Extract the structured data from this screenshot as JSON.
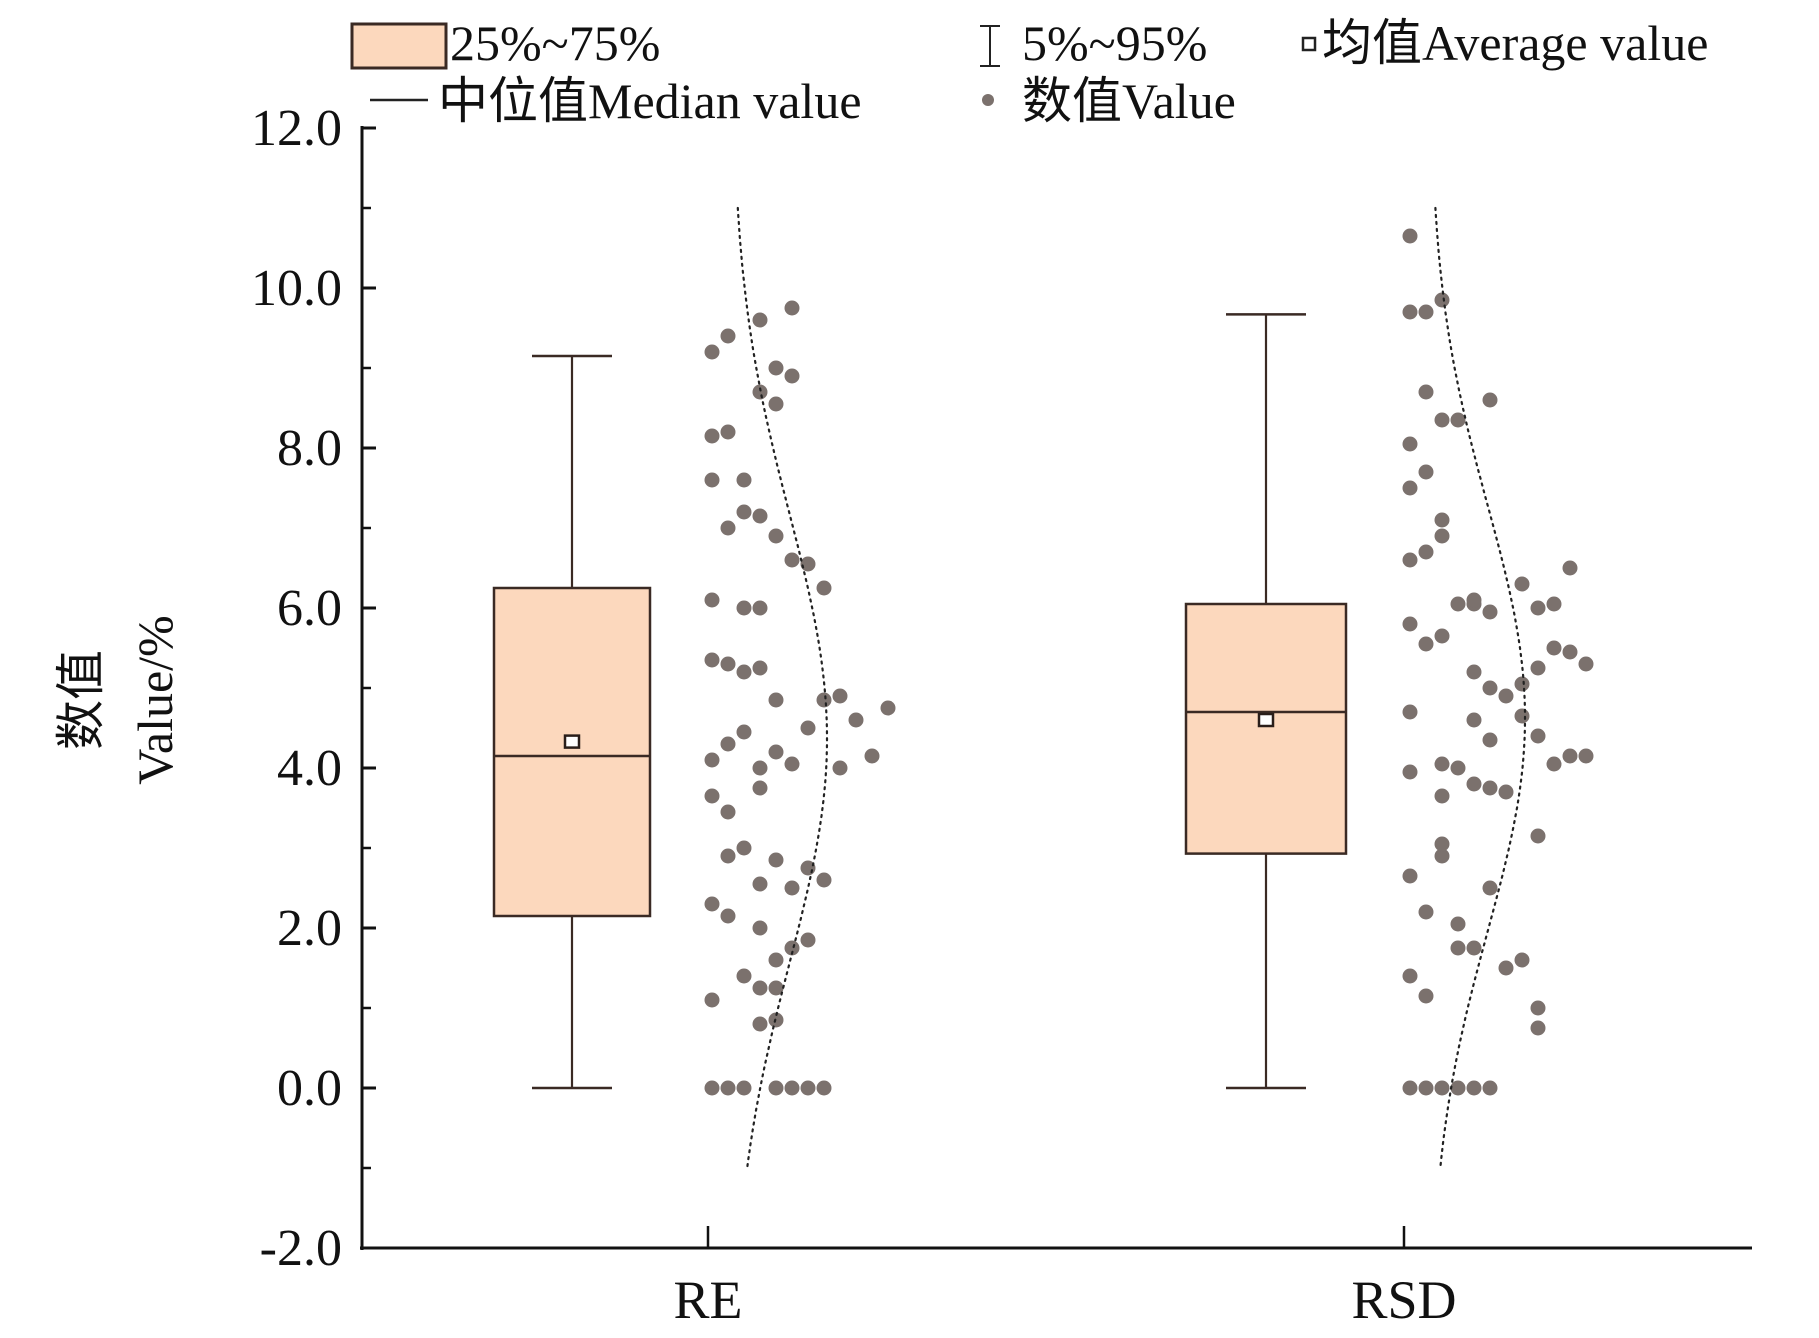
{
  "chart_data": {
    "type": "box",
    "title": "",
    "xlabel": "",
    "ylabel_line1": "数值",
    "ylabel_line2": "Value/%",
    "ylim": [
      -2.0,
      12.0
    ],
    "yticks": [
      "-2.0",
      "0.0",
      "2.0",
      "4.0",
      "6.0",
      "8.0",
      "10.0",
      "12.0"
    ],
    "ytick_values": [
      -2,
      0,
      2,
      4,
      6,
      8,
      10,
      12
    ],
    "categories": [
      "RE",
      "RSD"
    ],
    "colors": {
      "box_fill": "#fcd8bd",
      "box_stroke": "#3a2a24",
      "point": "#7b716d",
      "curve": "#222222"
    },
    "legend": {
      "placement": "top",
      "items": [
        {
          "key": "box",
          "label": "25%~75%"
        },
        {
          "key": "whisker",
          "label": "5%~95%"
        },
        {
          "key": "mean",
          "label": "均值Average value"
        },
        {
          "key": "median",
          "label": "中位值Median value"
        },
        {
          "key": "point",
          "label": "数值Value"
        }
      ]
    },
    "series": [
      {
        "name": "RE",
        "whisker_low": 0.0,
        "q1": 2.15,
        "median": 4.15,
        "q3": 6.25,
        "whisker_high": 9.15,
        "mean": 4.33,
        "points": [
          [
            0.0,
            0
          ],
          [
            0.0,
            1
          ],
          [
            0.0,
            2
          ],
          [
            0.0,
            4
          ],
          [
            0.0,
            5
          ],
          [
            0.0,
            6
          ],
          [
            0.0,
            7
          ],
          [
            0.8,
            3
          ],
          [
            0.85,
            4
          ],
          [
            1.1,
            0
          ],
          [
            1.25,
            3
          ],
          [
            1.25,
            4
          ],
          [
            1.4,
            2
          ],
          [
            1.6,
            4
          ],
          [
            1.75,
            5
          ],
          [
            1.85,
            6
          ],
          [
            2.0,
            3
          ],
          [
            2.15,
            1
          ],
          [
            2.3,
            0
          ],
          [
            2.5,
            5
          ],
          [
            2.55,
            3
          ],
          [
            2.6,
            7
          ],
          [
            2.75,
            6
          ],
          [
            2.85,
            4
          ],
          [
            2.9,
            1
          ],
          [
            3.0,
            2
          ],
          [
            3.45,
            1
          ],
          [
            3.65,
            0
          ],
          [
            3.75,
            3
          ],
          [
            4.0,
            3
          ],
          [
            4.05,
            5
          ],
          [
            4.0,
            8
          ],
          [
            4.1,
            0
          ],
          [
            4.15,
            10
          ],
          [
            4.2,
            4
          ],
          [
            4.3,
            1
          ],
          [
            4.45,
            2
          ],
          [
            4.5,
            6
          ],
          [
            4.6,
            9
          ],
          [
            4.75,
            11
          ],
          [
            4.85,
            4
          ],
          [
            4.85,
            7
          ],
          [
            4.9,
            8
          ],
          [
            5.2,
            2
          ],
          [
            5.25,
            3
          ],
          [
            5.3,
            1
          ],
          [
            5.35,
            0
          ],
          [
            6.0,
            2
          ],
          [
            6.0,
            3
          ],
          [
            6.1,
            0
          ],
          [
            6.25,
            7
          ],
          [
            6.55,
            6
          ],
          [
            6.6,
            5
          ],
          [
            6.9,
            4
          ],
          [
            7.0,
            1
          ],
          [
            7.15,
            3
          ],
          [
            7.2,
            2
          ],
          [
            7.6,
            0
          ],
          [
            7.6,
            2
          ],
          [
            8.15,
            0
          ],
          [
            8.2,
            1
          ],
          [
            8.55,
            4
          ],
          [
            8.7,
            3
          ],
          [
            8.9,
            5
          ],
          [
            9.0,
            4
          ],
          [
            9.2,
            0
          ],
          [
            9.4,
            1
          ],
          [
            9.6,
            3
          ],
          [
            9.75,
            5
          ]
        ]
      },
      {
        "name": "RSD",
        "whisker_low": 0.0,
        "q1": 2.93,
        "median": 4.7,
        "q3": 6.05,
        "whisker_high": 9.67,
        "mean": 4.6,
        "points": [
          [
            0.0,
            0
          ],
          [
            0.0,
            1
          ],
          [
            0.0,
            2
          ],
          [
            0.0,
            3
          ],
          [
            0.0,
            4
          ],
          [
            0.0,
            5
          ],
          [
            0.75,
            8
          ],
          [
            1.0,
            8
          ],
          [
            1.15,
            1
          ],
          [
            1.4,
            0
          ],
          [
            1.5,
            6
          ],
          [
            1.6,
            7
          ],
          [
            1.75,
            3
          ],
          [
            1.75,
            4
          ],
          [
            2.05,
            3
          ],
          [
            2.2,
            1
          ],
          [
            2.5,
            5
          ],
          [
            2.65,
            0
          ],
          [
            2.9,
            2
          ],
          [
            3.05,
            2
          ],
          [
            3.15,
            8
          ],
          [
            3.65,
            2
          ],
          [
            3.7,
            6
          ],
          [
            3.75,
            5
          ],
          [
            3.8,
            4
          ],
          [
            3.95,
            0
          ],
          [
            4.0,
            3
          ],
          [
            4.05,
            2
          ],
          [
            4.05,
            9
          ],
          [
            4.15,
            10
          ],
          [
            4.15,
            11
          ],
          [
            4.35,
            5
          ],
          [
            4.4,
            8
          ],
          [
            4.6,
            4
          ],
          [
            4.65,
            7
          ],
          [
            4.7,
            0
          ],
          [
            4.9,
            6
          ],
          [
            5.0,
            5
          ],
          [
            5.05,
            7
          ],
          [
            5.2,
            4
          ],
          [
            5.25,
            8
          ],
          [
            5.3,
            11
          ],
          [
            5.45,
            10
          ],
          [
            5.5,
            9
          ],
          [
            5.55,
            1
          ],
          [
            5.65,
            2
          ],
          [
            5.8,
            0
          ],
          [
            5.95,
            5
          ],
          [
            6.05,
            4
          ],
          [
            6.05,
            3
          ],
          [
            6.0,
            8
          ],
          [
            6.05,
            9
          ],
          [
            6.1,
            4
          ],
          [
            6.3,
            7
          ],
          [
            6.5,
            10
          ],
          [
            6.6,
            0
          ],
          [
            6.7,
            1
          ],
          [
            6.9,
            2
          ],
          [
            7.1,
            2
          ],
          [
            7.5,
            0
          ],
          [
            7.7,
            1
          ],
          [
            8.05,
            0
          ],
          [
            8.35,
            3
          ],
          [
            8.35,
            2
          ],
          [
            8.6,
            5
          ],
          [
            8.7,
            1
          ],
          [
            9.7,
            0
          ],
          [
            9.7,
            1
          ],
          [
            9.85,
            2
          ],
          [
            10.65,
            0
          ]
        ]
      }
    ]
  }
}
